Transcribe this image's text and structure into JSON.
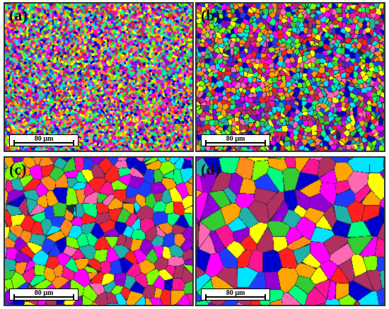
{
  "panels": [
    {
      "label": "(a)",
      "scale": "80 µm",
      "grain": "very-fine"
    },
    {
      "label": "(b)",
      "scale": "80 µm",
      "grain": "fine"
    },
    {
      "label": "(c)",
      "scale": "80 µm",
      "grain": "medium"
    },
    {
      "label": "(d)",
      "scale": "80 µm",
      "grain": "coarse"
    }
  ],
  "palette": [
    "#ff2020",
    "#ff1493",
    "#ff00ff",
    "#1e3cff",
    "#0000cd",
    "#00e5ff",
    "#33cc33",
    "#00ff7f",
    "#ffff00",
    "#ff8c1a",
    "#ffa500",
    "#b03060",
    "#9400d3",
    "#ff69b4",
    "#7fff00",
    "#20b2aa"
  ]
}
